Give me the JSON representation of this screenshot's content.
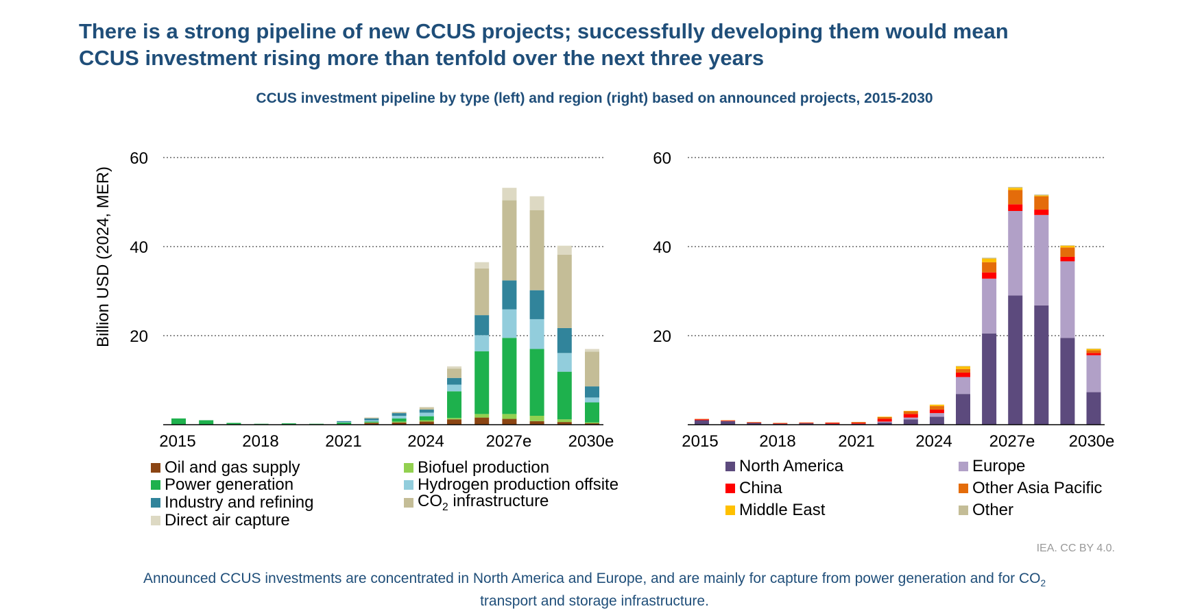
{
  "headline": {
    "line1": "There is a strong pipeline of new CCUS projects; successfully developing them would mean",
    "line2": "CCUS investment rising more than tenfold over the next three years"
  },
  "subtitle": "CCUS investment pipeline by type (left) and region (right) based on announced projects, 2015-2030",
  "source": "IEA. CC BY 4.0.",
  "footer": {
    "line1_pre": "Announced CCUS investments are concentrated in North America and Europe, and are mainly for capture from power generation and for CO",
    "line1_sub": "2",
    "line2": "transport and storage infrastructure."
  },
  "chart_data": [
    {
      "type": "bar",
      "stacked": true,
      "title": "CCUS investment pipeline by type",
      "ylabel": "Billion USD (2024, MER)",
      "xlabel": "",
      "ylim": [
        0,
        60
      ],
      "yticks": [
        20,
        40,
        60
      ],
      "grid": true,
      "categories": [
        "2015",
        "2016",
        "2017",
        "2018",
        "2019",
        "2020",
        "2021",
        "2022",
        "2023",
        "2024",
        "2025",
        "2026",
        "2027e",
        "2028e",
        "2029e",
        "2030e"
      ],
      "tick_labels": [
        "2015",
        "2018",
        "2021",
        "2024",
        "2027e",
        "2030e"
      ],
      "series": [
        {
          "name": "Oil and gas supply",
          "color": "#8b4513",
          "values": [
            0,
            0,
            0,
            0,
            0,
            0,
            0.1,
            0.4,
            0.5,
            0.7,
            1.2,
            1.6,
            1.3,
            0.8,
            0.6,
            0.3
          ]
        },
        {
          "name": "Biofuel production",
          "color": "#92d050",
          "values": [
            0,
            0,
            0,
            0,
            0,
            0,
            0,
            0.1,
            0.2,
            0.3,
            0.3,
            0.8,
            1.1,
            1.2,
            0.6,
            0.2
          ]
        },
        {
          "name": "Power generation",
          "color": "#1eb14d",
          "values": [
            1.4,
            1,
            0.4,
            0.2,
            0.3,
            0.2,
            0.4,
            0.2,
            0.7,
            0.9,
            6,
            14.1,
            17.1,
            15,
            10.7,
            4.5
          ]
        },
        {
          "name": "Hydrogen production offsite",
          "color": "#92cddc",
          "values": [
            0,
            0,
            0,
            0,
            0,
            0,
            0.1,
            0.3,
            0.6,
            0.8,
            1.5,
            3.6,
            6.4,
            6.7,
            4.2,
            1.1
          ]
        },
        {
          "name": "Industry and refining",
          "color": "#31849b",
          "values": [
            0,
            0,
            0,
            0,
            0,
            0,
            0.2,
            0.4,
            0.6,
            0.7,
            1.5,
            4.5,
            6.5,
            6.5,
            5.6,
            2.5
          ]
        },
        {
          "name": "CO2 infrastructure",
          "color": "#c4bd97",
          "values": [
            0,
            0,
            0,
            0,
            0,
            0,
            0,
            0.2,
            0.2,
            0.4,
            2.1,
            10.5,
            18,
            18,
            16.5,
            7.8
          ]
        },
        {
          "name": "Direct air capture",
          "color": "#ddd9c3",
          "values": [
            0,
            0,
            0,
            0,
            0,
            0,
            0,
            0,
            0.1,
            0.2,
            0.5,
            1.4,
            2.8,
            3.1,
            2,
            0.6
          ]
        }
      ],
      "legend": [
        {
          "label": "Oil and gas supply",
          "color": "#8b4513"
        },
        {
          "label": "Biofuel production",
          "color": "#92d050"
        },
        {
          "label": "Power generation",
          "color": "#1eb14d"
        },
        {
          "label_pre": "Hydrogen production offsite",
          "color": "#92cddc"
        },
        {
          "label": "Industry and refining",
          "color": "#31849b"
        },
        {
          "label_pre": "CO",
          "label_sub": "2",
          "label_post": " infrastructure",
          "color": "#c4bd97"
        },
        {
          "label": "Direct air capture",
          "color": "#ddd9c3"
        }
      ]
    },
    {
      "type": "bar",
      "stacked": true,
      "title": "CCUS investment pipeline by region",
      "ylabel": "",
      "xlabel": "",
      "ylim": [
        0,
        60
      ],
      "yticks": [
        20,
        40,
        60
      ],
      "grid": true,
      "categories": [
        "2015",
        "2016",
        "2017",
        "2018",
        "2019",
        "2020",
        "2021",
        "2022",
        "2023",
        "2024",
        "2025",
        "2026",
        "2027e",
        "2028e",
        "2029e",
        "2030e"
      ],
      "tick_labels": [
        "2015",
        "2018",
        "2021",
        "2024",
        "2027e",
        "2030e"
      ],
      "series": [
        {
          "name": "North America",
          "color": "#5c4a7d",
          "values": [
            1,
            0.8,
            0.4,
            0.2,
            0.3,
            0.2,
            0.2,
            0.5,
            1.2,
            1.8,
            6.9,
            20.5,
            29,
            26.8,
            19.5,
            7.3
          ]
        },
        {
          "name": "Europe",
          "color": "#b1a0c7",
          "values": [
            0,
            0,
            0,
            0,
            0,
            0,
            0,
            0.2,
            0.4,
            0.8,
            3.8,
            12.3,
            19,
            20.3,
            17.2,
            8.3
          ]
        },
        {
          "name": "China",
          "color": "#ff0000",
          "values": [
            0.2,
            0.1,
            0.1,
            0.1,
            0.1,
            0.2,
            0.2,
            0.6,
            0.8,
            0.8,
            1,
            1.4,
            1.5,
            1.2,
            1,
            0.5
          ]
        },
        {
          "name": "Other Asia Pacific",
          "color": "#e46c0a",
          "values": [
            0.1,
            0.1,
            0.1,
            0.1,
            0.1,
            0.1,
            0.2,
            0.4,
            0.6,
            0.8,
            0.8,
            2.3,
            3.2,
            3,
            2.1,
            0.6
          ]
        },
        {
          "name": "Middle East",
          "color": "#ffc000",
          "values": [
            0,
            0,
            0,
            0,
            0,
            0,
            0,
            0.1,
            0.1,
            0.3,
            0.6,
            0.8,
            0.5,
            0.2,
            0.4,
            0.3
          ]
        },
        {
          "name": "Other",
          "color": "#c4bd97",
          "values": [
            0,
            0,
            0,
            0,
            0,
            0,
            0,
            0,
            0,
            0,
            0.1,
            0.2,
            0.2,
            0.2,
            0.1,
            0.1
          ]
        }
      ],
      "legend": [
        {
          "label": "North America",
          "color": "#5c4a7d"
        },
        {
          "label": "Europe",
          "color": "#b1a0c7"
        },
        {
          "label": "China",
          "color": "#ff0000"
        },
        {
          "label": "Other Asia Pacific",
          "color": "#e46c0a"
        },
        {
          "label": "Middle East",
          "color": "#ffc000"
        },
        {
          "label": "Other",
          "color": "#c4bd97"
        }
      ]
    }
  ]
}
